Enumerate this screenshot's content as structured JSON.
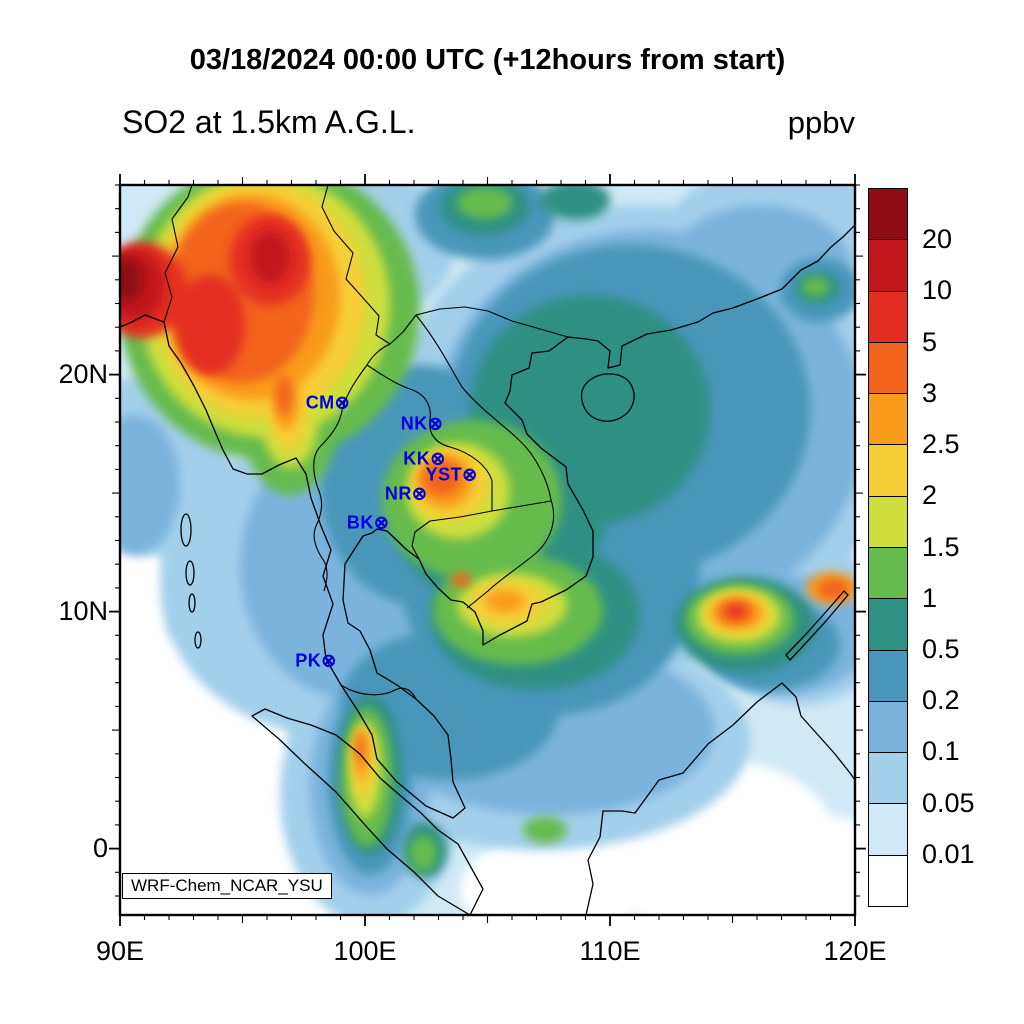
{
  "header": {
    "title": "03/18/2024 00:00 UTC (+12hours from start)",
    "subtitle": "SO2 at 1.5km A.G.L.",
    "units": "ppbv"
  },
  "map": {
    "credit": "WRF-Chem_NCAR_YSU",
    "marker_glyph": "⊗",
    "marker_color": "#0000dd",
    "x_axis": {
      "ticks": [
        {
          "label": "90E",
          "lon": 90
        },
        {
          "label": "100E",
          "lon": 100
        },
        {
          "label": "110E",
          "lon": 110
        },
        {
          "label": "120E",
          "lon": 120
        }
      ]
    },
    "y_axis": {
      "ticks": [
        {
          "label": "20N",
          "lat": 20
        },
        {
          "label": "10N",
          "lat": 10
        },
        {
          "label": "0",
          "lat": 0
        }
      ]
    },
    "stations": [
      {
        "id": "CM",
        "lon": 98.95,
        "lat": 18.8
      },
      {
        "id": "NK",
        "lon": 102.75,
        "lat": 17.9
      },
      {
        "id": "KK",
        "lon": 102.85,
        "lat": 16.45
      },
      {
        "id": "YST",
        "lon": 104.15,
        "lat": 15.75
      },
      {
        "id": "NR",
        "lon": 102.1,
        "lat": 14.95
      },
      {
        "id": "BK",
        "lon": 100.55,
        "lat": 13.75
      },
      {
        "id": "PK",
        "lon": 98.4,
        "lat": 7.9
      }
    ]
  },
  "colorbar": {
    "labels": [
      "20",
      "10",
      "5",
      "3",
      "2.5",
      "2",
      "1.5",
      "1",
      "0.5",
      "0.2",
      "0.1",
      "0.05",
      "0.01"
    ],
    "colors": [
      "#8e0d15",
      "#c1161c",
      "#e42d22",
      "#f2641e",
      "#f99b1d",
      "#f6cf38",
      "#cede3c",
      "#66bb4e",
      "#2f9084",
      "#4a96ba",
      "#7ab4dc",
      "#a3cfeb",
      "#cfe9f6",
      "#ffffff"
    ]
  },
  "chart_data": {
    "type": "heatmap",
    "variable": "SO2",
    "level": "1.5km A.G.L.",
    "units": "ppbv",
    "valid_time": "03/18/2024 00:00 UTC",
    "forecast_note": "+12hours from start",
    "model": "WRF-Chem_NCAR_YSU",
    "lon_ticks": [
      "90E",
      "100E",
      "110E",
      "120E"
    ],
    "lat_ticks": [
      "20N",
      "10N",
      "0"
    ],
    "contour_levels": [
      0.01,
      0.05,
      0.1,
      0.2,
      0.5,
      1,
      1.5,
      2,
      2.5,
      3,
      5,
      10,
      20
    ],
    "legend_position": "right",
    "stations_marked": [
      "CM",
      "NK",
      "KK",
      "YST",
      "NR",
      "BK",
      "PK"
    ]
  }
}
